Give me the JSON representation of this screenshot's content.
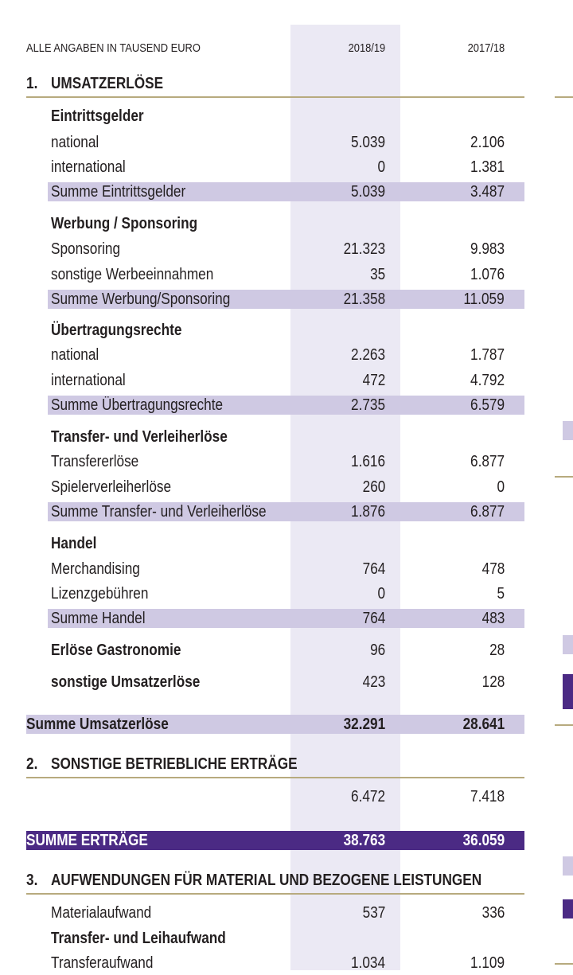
{
  "header": {
    "caption": "ALLE ANGABEN IN TAUSEND EURO",
    "col1": "2018/19",
    "col2": "2017/18"
  },
  "sections": {
    "s1": {
      "num": "1.",
      "title": "UMSATZERLÖSE"
    },
    "s2": {
      "num": "2.",
      "title": "SONSTIGE BETRIEBLICHE ERTRÄGE"
    },
    "s3": {
      "num": "3.",
      "title": "AUFWENDUNGEN FÜR MATERIAL UND BEZOGENE LEISTUNGEN"
    }
  },
  "eintritt": {
    "heading": "Eintrittsgelder",
    "r1": {
      "label": "national",
      "v1": "5.039",
      "v2": "2.106"
    },
    "r2": {
      "label": "international",
      "v1": "0",
      "v2": "1.381"
    },
    "sum": {
      "label": "Summe Eintrittsgelder",
      "v1": "5.039",
      "v2": "3.487"
    }
  },
  "werbung": {
    "heading": "Werbung / Sponsoring",
    "r1": {
      "label": "Sponsoring",
      "v1": "21.323",
      "v2": "9.983"
    },
    "r2": {
      "label": "sonstige Werbeeinnahmen",
      "v1": "35",
      "v2": "1.076"
    },
    "sum": {
      "label": "Summe Werbung/Sponsoring",
      "v1": "21.358",
      "v2": "11.059"
    }
  },
  "uebertragung": {
    "heading": "Übertragungsrechte",
    "r1": {
      "label": "national",
      "v1": "2.263",
      "v2": "1.787"
    },
    "r2": {
      "label": "international",
      "v1": "472",
      "v2": "4.792"
    },
    "sum": {
      "label": "Summe Übertragungsrechte",
      "v1": "2.735",
      "v2": "6.579"
    }
  },
  "transfer": {
    "heading": "Transfer- und Verleiherlöse",
    "r1": {
      "label": "Transfererlöse",
      "v1": "1.616",
      "v2": "6.877"
    },
    "r2": {
      "label": "Spielerverleiherlöse",
      "v1": "260",
      "v2": "0"
    },
    "sum": {
      "label": "Summe Transfer- und Verleiherlöse",
      "v1": "1.876",
      "v2": "6.877"
    }
  },
  "handel": {
    "heading": "Handel",
    "r1": {
      "label": "Merchandising",
      "v1": "764",
      "v2": "478"
    },
    "r2": {
      "label": "Lizenzgebühren",
      "v1": "0",
      "v2": "5"
    },
    "sum": {
      "label": "Summe Handel",
      "v1": "764",
      "v2": "483"
    }
  },
  "gastro": {
    "label": "Erlöse Gastronomie",
    "v1": "96",
    "v2": "28"
  },
  "sonstige": {
    "label": "sonstige Umsatzerlöse",
    "v1": "423",
    "v2": "128"
  },
  "summe_umsatz": {
    "label": "Summe Umsatzerlöse",
    "v1": "32.291",
    "v2": "28.641"
  },
  "sbe": {
    "v1": "6.472",
    "v2": "7.418"
  },
  "summe_ertraege": {
    "label": "SUMME ERTRÄGE",
    "v1": "38.763",
    "v2": "36.059"
  },
  "material": {
    "r1": {
      "label": "Materialaufwand",
      "v1": "537",
      "v2": "336"
    },
    "heading": "Transfer- und Leihaufwand",
    "r2": {
      "label": "Transferaufwand",
      "v1": "1.034",
      "v2": "1.109"
    }
  },
  "colors": {
    "band": "#cfc9e3",
    "band_dark": "#4b2a84",
    "rule": "#b7aa7e",
    "highlight": "#ebe9f4"
  }
}
